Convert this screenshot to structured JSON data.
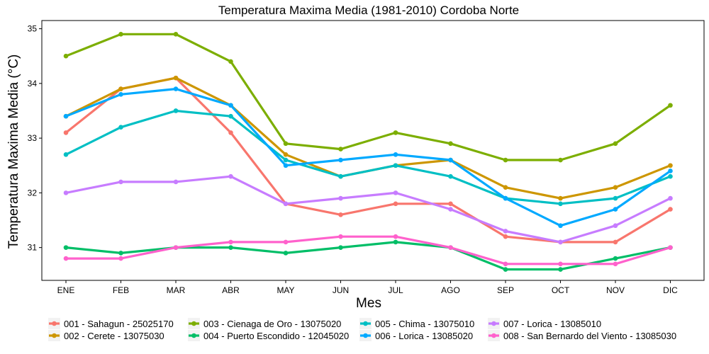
{
  "chart_data": {
    "type": "line",
    "title": "Temperatura Maxima Media (1981-2010)  Cordoba Norte",
    "xlabel": "Mes",
    "ylabel": "Temperatura Maxima Media  (°C)",
    "categories": [
      "ENE",
      "FEB",
      "MAR",
      "ABR",
      "MAY",
      "JUN",
      "JUL",
      "AGO",
      "SEP",
      "OCT",
      "NOV",
      "DIC"
    ],
    "y_ticks": [
      31,
      32,
      33,
      34,
      35
    ],
    "ylim": [
      30.4,
      35.15
    ],
    "grid": false,
    "legend_position": "bottom",
    "series": [
      {
        "name": "001 - Sahagun - 25025170",
        "color": "#F8766D",
        "values": [
          33.1,
          33.9,
          34.1,
          33.1,
          31.8,
          31.6,
          31.8,
          31.8,
          31.2,
          31.1,
          31.1,
          31.7
        ]
      },
      {
        "name": "002 - Cerete - 13075030",
        "color": "#CD9600",
        "values": [
          33.4,
          33.9,
          34.1,
          33.6,
          32.7,
          32.3,
          32.5,
          32.6,
          32.1,
          31.9,
          32.1,
          32.5
        ]
      },
      {
        "name": "003 - Cienaga de Oro - 13075020",
        "color": "#7CAE00",
        "values": [
          34.5,
          34.9,
          34.9,
          34.4,
          32.9,
          32.8,
          33.1,
          32.9,
          32.6,
          32.6,
          32.9,
          33.6
        ]
      },
      {
        "name": "004 - Puerto Escondido - 12045020",
        "color": "#00BE67",
        "values": [
          31.0,
          30.9,
          31.0,
          31.0,
          30.9,
          31.0,
          31.1,
          31.0,
          30.6,
          30.6,
          30.8,
          31.0
        ]
      },
      {
        "name": "005 - Chima - 13075010",
        "color": "#00BFC4",
        "values": [
          32.7,
          33.2,
          33.5,
          33.4,
          32.6,
          32.3,
          32.5,
          32.3,
          31.9,
          31.8,
          31.9,
          32.3
        ]
      },
      {
        "name": "006 - Lorica - 13085020",
        "color": "#00A9FF",
        "values": [
          33.4,
          33.8,
          33.9,
          33.6,
          32.5,
          32.6,
          32.7,
          32.6,
          31.9,
          31.4,
          31.7,
          32.4
        ]
      },
      {
        "name": "007 - Lorica - 13085010",
        "color": "#C77CFF",
        "values": [
          32.0,
          32.2,
          32.2,
          32.3,
          31.8,
          31.9,
          32.0,
          31.7,
          31.3,
          31.1,
          31.4,
          31.9
        ]
      },
      {
        "name": "008 - San Bernardo del Viento - 13085030",
        "color": "#FF61CC",
        "values": [
          30.8,
          30.8,
          31.0,
          31.1,
          31.1,
          31.2,
          31.2,
          31.0,
          30.7,
          30.7,
          30.7,
          31.0
        ]
      }
    ]
  }
}
